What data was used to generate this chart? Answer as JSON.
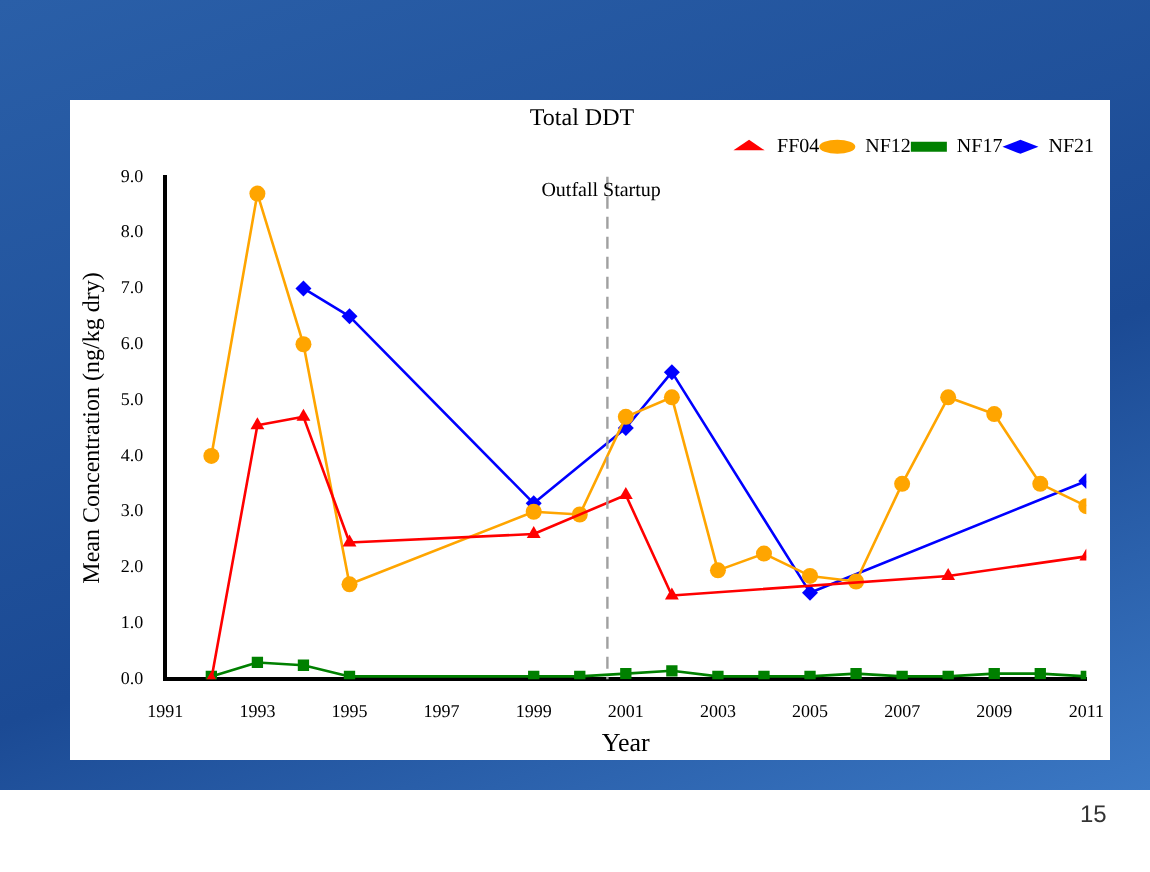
{
  "chart_data": {
    "type": "line",
    "title": "Total DDT",
    "xlabel": "Year",
    "ylabel": "Mean Concentration (ng/kg dry)",
    "xlim": [
      1991,
      2011
    ],
    "xticks": [
      1991,
      1993,
      1995,
      1997,
      1999,
      2001,
      2003,
      2005,
      2007,
      2009,
      2011
    ],
    "ylim": [
      0,
      9
    ],
    "yticks": [
      {
        "value": 0,
        "label": "0.0"
      },
      {
        "value": 1,
        "label": "1.0"
      },
      {
        "value": 2,
        "label": "2.0"
      },
      {
        "value": 3,
        "label": "3.0"
      },
      {
        "value": 4,
        "label": "4.0"
      },
      {
        "value": 5,
        "label": "5.0"
      },
      {
        "value": 6,
        "label": "6.0"
      },
      {
        "value": 7,
        "label": "7.0"
      },
      {
        "value": 8,
        "label": "8.0"
      },
      {
        "value": 9,
        "label": "9.0"
      }
    ],
    "grid": false,
    "legend": "top right",
    "line_style": "solid",
    "ref_lines": [
      {
        "axis": "x",
        "value": 2000.6,
        "label": "Outfall Startup",
        "color": "#a0a0a0",
        "line_style": "dashed"
      }
    ],
    "annotations": [
      "15"
    ],
    "series": [
      {
        "name": "FF04",
        "color": "#ff0000",
        "marker": "triangle",
        "x": [
          1992,
          1993,
          1994,
          1995,
          1999,
          2001,
          2002,
          2008,
          2011
        ],
        "values": [
          0,
          4.55,
          4.7,
          2.45,
          2.6,
          3.3,
          1.5,
          1.85,
          2.2
        ]
      },
      {
        "name": "NF12",
        "color": "#ffa500",
        "marker": "circle",
        "x": [
          1992,
          1993,
          1994,
          1995,
          1999,
          2000,
          2001,
          2002,
          2003,
          2004,
          2005,
          2006,
          2007,
          2008,
          2009,
          2010,
          2011
        ],
        "values": [
          4.0,
          8.7,
          6.0,
          1.7,
          3.0,
          2.95,
          4.7,
          5.05,
          1.95,
          2.25,
          1.85,
          1.75,
          3.5,
          5.05,
          4.75,
          3.5,
          3.1
        ]
      },
      {
        "name": "NF17",
        "color": "#008000",
        "marker": "square",
        "x": [
          1992,
          1993,
          1994,
          1995,
          1999,
          2000,
          2001,
          2002,
          2003,
          2004,
          2005,
          2006,
          2007,
          2008,
          2009,
          2010,
          2011
        ],
        "values": [
          0.05,
          0.3,
          0.25,
          0.05,
          0.05,
          0.05,
          0.1,
          0.15,
          0.05,
          0.05,
          0.05,
          0.1,
          0.05,
          0.05,
          0.1,
          0.1,
          0.05
        ]
      },
      {
        "name": "NF21",
        "color": "#0000ff",
        "marker": "diamond",
        "x": [
          1994,
          1995,
          1999,
          2001,
          2002,
          2005,
          2011
        ],
        "values": [
          7.0,
          6.5,
          3.15,
          4.5,
          5.5,
          1.55,
          3.55
        ]
      }
    ]
  }
}
